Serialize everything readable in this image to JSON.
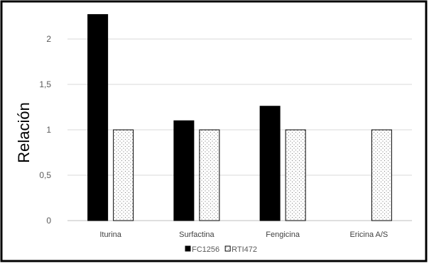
{
  "chart_data": {
    "type": "bar",
    "title": "",
    "xlabel": "",
    "ylabel": "Relación",
    "ylim": [
      0,
      2.25
    ],
    "yticks": [
      "0",
      "0,5",
      "1",
      "1,5",
      "2"
    ],
    "ytick_values": [
      0,
      0.5,
      1,
      1.5,
      2
    ],
    "grid": true,
    "legend_position": "bottom",
    "categories": [
      "Iturina",
      "Surfactina",
      "Fengicina",
      "Ericina A/S"
    ],
    "series": [
      {
        "name": "FC1256",
        "values": [
          2.27,
          1.1,
          1.26,
          0
        ],
        "color": "#000000",
        "pattern": "solid"
      },
      {
        "name": "RTI472",
        "values": [
          1,
          1,
          1,
          1
        ],
        "color": "#000000",
        "pattern": "dotted"
      }
    ]
  }
}
